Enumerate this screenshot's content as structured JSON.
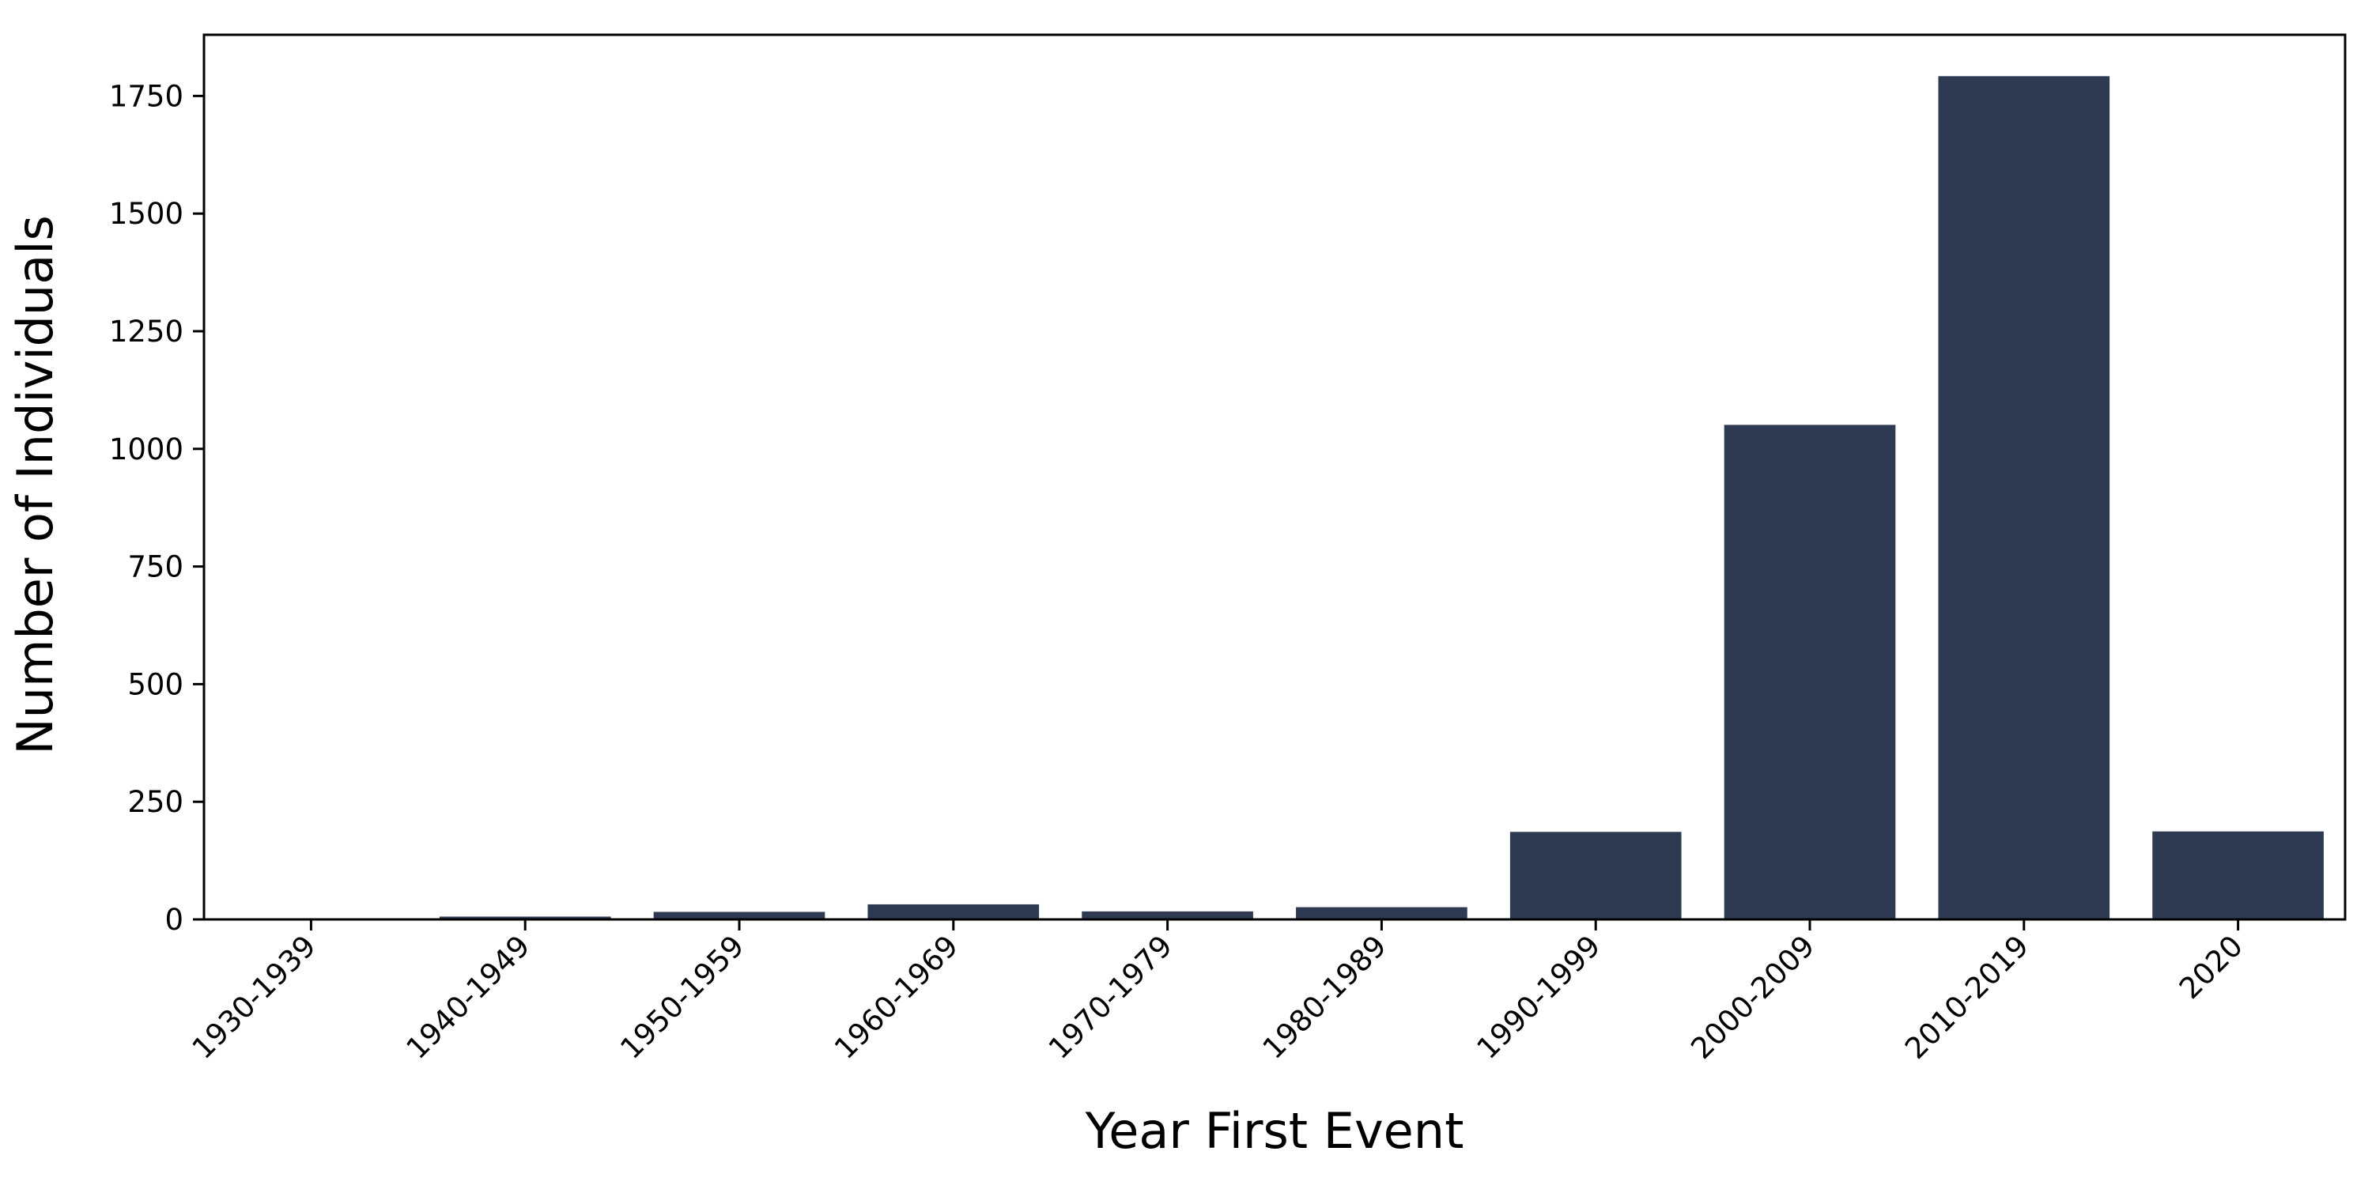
{
  "chart_data": {
    "type": "bar",
    "categories": [
      "1930-1939",
      "1940-1949",
      "1950-1959",
      "1960-1969",
      "1970-1979",
      "1980-1989",
      "1990-1999",
      "2000-2009",
      "2010-2019",
      "2020"
    ],
    "values": [
      2,
      6,
      16,
      32,
      17,
      26,
      186,
      1051,
      1792,
      187
    ],
    "title": "",
    "xlabel": "Year First Event",
    "ylabel": "Number of Individuals",
    "ylim": [
      0,
      1880
    ],
    "yticks": [
      0,
      250,
      500,
      750,
      1000,
      1250,
      1500,
      1750
    ],
    "bar_color": "#2d3a52",
    "grid": false,
    "legend": "none"
  }
}
